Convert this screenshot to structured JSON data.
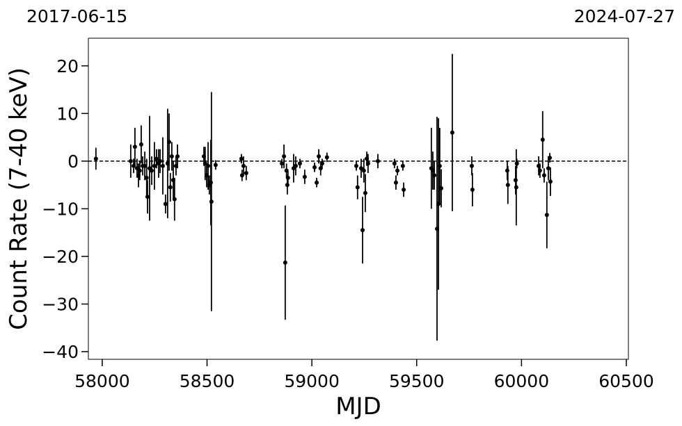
{
  "chart_data": {
    "type": "errorbar",
    "top_left_label": "2017-06-15",
    "top_right_label": "2024-07-27",
    "x_label": "MJD",
    "y_label": "Count Rate (7-40 keV)",
    "xlim": [
      57934,
      60510
    ],
    "ylim": [
      -41.6,
      25.8
    ],
    "xticks": [
      58000,
      58500,
      59000,
      59500,
      60000,
      60500
    ],
    "yticks": [
      {
        "value": -40,
        "label": "−40"
      },
      {
        "value": -30,
        "label": "−30"
      },
      {
        "value": -20,
        "label": "−20"
      },
      {
        "value": -10,
        "label": "−10"
      },
      0,
      10,
      20
    ],
    "hline": 0,
    "color": "#000000",
    "series": [
      {
        "name": "Count Rate",
        "x": [
          57970,
          58136,
          58150,
          58156,
          58166,
          58173,
          58179,
          58186,
          58193,
          58203,
          58212,
          58216,
          58226,
          58236,
          58249,
          58259,
          58269,
          58276,
          58289,
          58302,
          58312,
          58319,
          58325,
          58332,
          58339,
          58345,
          58352,
          58359,
          58485,
          58491,
          58498,
          58505,
          58511,
          58518,
          58521,
          58541,
          58664,
          58667,
          58674,
          58687,
          58857,
          58867,
          58873,
          58879,
          58883,
          58886,
          58913,
          58923,
          58943,
          58966,
          59013,
          59023,
          59033,
          59042,
          59049,
          59072,
          59212,
          59218,
          59235,
          59242,
          59248,
          59255,
          59262,
          59268,
          59315,
          59394,
          59401,
          59408,
          59434,
          59438,
          59570,
          59577,
          59584,
          59597,
          59604,
          59610,
          59617,
          59670,
          59763,
          59766,
          59932,
          59935,
          59972,
          59975,
          59978,
          60082,
          60088,
          60101,
          60108,
          60121,
          60128,
          60135,
          60138
        ],
        "values": [
          0.5,
          0,
          -1,
          3,
          -1.5,
          -3,
          -2,
          3.5,
          -1,
          -1,
          -3.5,
          -7.5,
          -1.5,
          -2,
          -1,
          0.5,
          -0.5,
          0,
          -1,
          -9,
          -0.5,
          4,
          -5.5,
          1,
          -4,
          -8,
          -1,
          1,
          1,
          -0.5,
          -3,
          -1,
          -5,
          -4.5,
          -8.5,
          -0.8,
          0.5,
          -3,
          -1,
          -2.5,
          -0.5,
          1,
          -21.3,
          -2,
          -5,
          -3.5,
          -1.5,
          -1,
          -0.5,
          -3.3,
          -1.3,
          -4.5,
          1,
          -1.5,
          -0.5,
          0.8,
          -1,
          -5.5,
          -1.5,
          -14.5,
          -2,
          -6.7,
          0.5,
          -0.5,
          0,
          -0.5,
          -4.5,
          -2,
          -1,
          -6,
          -1.5,
          -2,
          -3,
          -14.2,
          -9,
          -1,
          -5.7,
          6,
          -1,
          -6,
          -2,
          -5,
          -4,
          -5.5,
          -0.5,
          -1,
          -2,
          4.5,
          -3,
          -11.3,
          -1.5,
          0.7,
          -4.3
        ],
        "errors": [
          2.3,
          3.5,
          1.5,
          4,
          2,
          2.5,
          2,
          4,
          2,
          3,
          4,
          3.5,
          11,
          3,
          5,
          2,
          3,
          2.5,
          6,
          2,
          11.5,
          6,
          3,
          3,
          4,
          4.5,
          2,
          2.5,
          2,
          3.5,
          2.5,
          5,
          2,
          9,
          23,
          1,
          1,
          1.2,
          2,
          1.5,
          1,
          2.5,
          12,
          1.5,
          2,
          1.5,
          3,
          2,
          1,
          1.5,
          1,
          1,
          1.5,
          1.5,
          1,
          1,
          1,
          2.5,
          2,
          7,
          2.5,
          4,
          1.5,
          2,
          1.5,
          1,
          1.5,
          1,
          1,
          1.5,
          8.5,
          4,
          3,
          23.5,
          18,
          8,
          4,
          16.5,
          2,
          3.5,
          2,
          4,
          3,
          8,
          1,
          2,
          1.5,
          6,
          1.5,
          7,
          2.5,
          1,
          3
        ]
      }
    ]
  }
}
